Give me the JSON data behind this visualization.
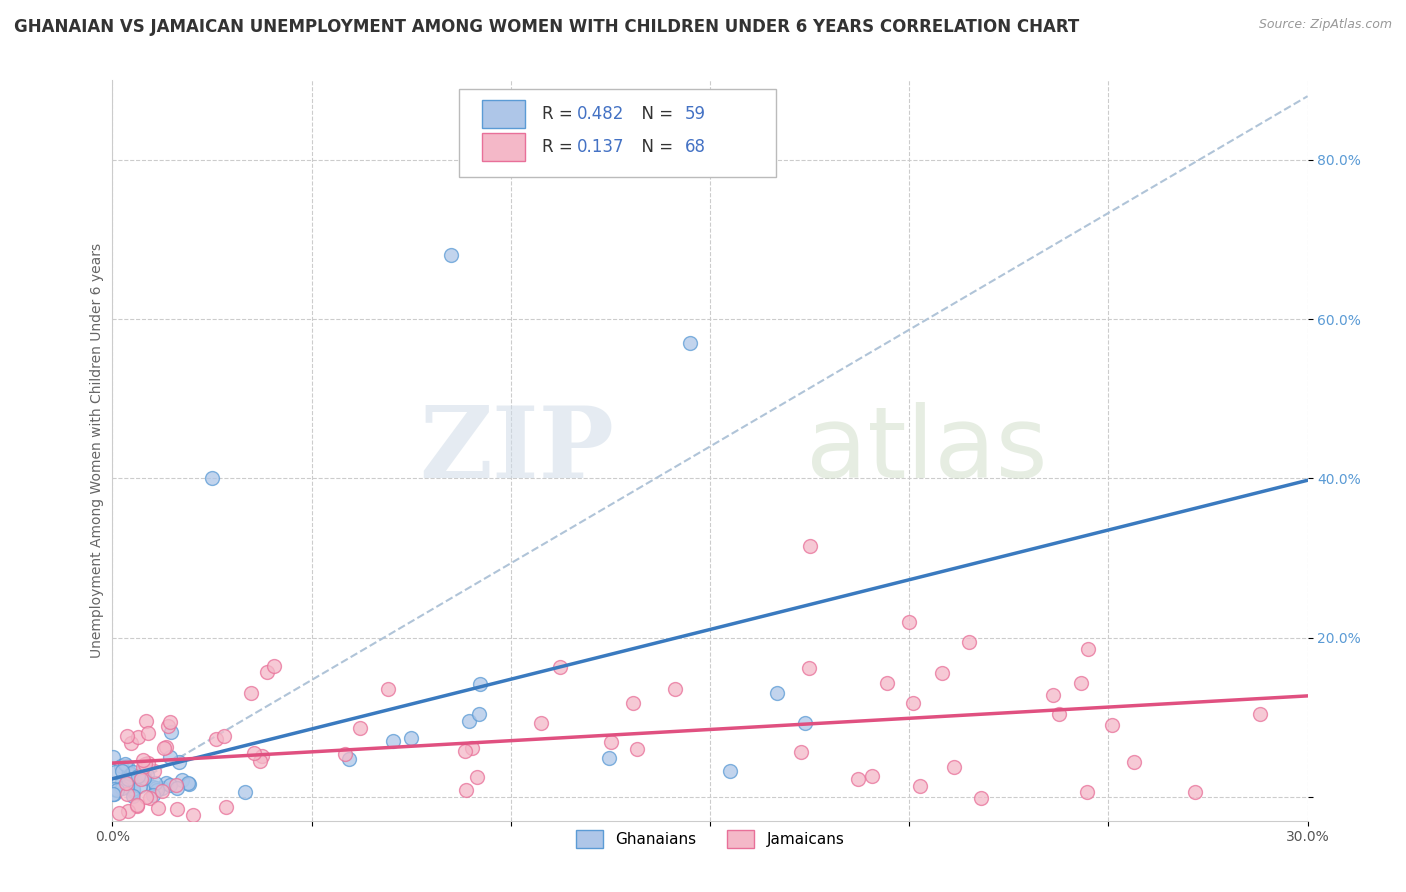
{
  "title": "GHANAIAN VS JAMAICAN UNEMPLOYMENT AMONG WOMEN WITH CHILDREN UNDER 6 YEARS CORRELATION CHART",
  "source": "Source: ZipAtlas.com",
  "ylabel": "Unemployment Among Women with Children Under 6 years",
  "watermark_zip": "ZIP",
  "watermark_atlas": "atlas",
  "xlim": [
    0.0,
    0.3
  ],
  "ylim": [
    -0.03,
    0.9
  ],
  "x_ticks": [
    0.0,
    0.05,
    0.1,
    0.15,
    0.2,
    0.25,
    0.3
  ],
  "x_tick_labels": [
    "0.0%",
    "",
    "",
    "",
    "",
    "",
    "30.0%"
  ],
  "y_ticks_right": [
    0.0,
    0.2,
    0.4,
    0.6,
    0.8
  ],
  "y_tick_labels_right": [
    "",
    "20.0%",
    "40.0%",
    "60.0%",
    "80.0%"
  ],
  "ghanaian_fill": "#aec6e8",
  "ghanaian_edge": "#5b9bd5",
  "jamaican_fill": "#f4b8c8",
  "jamaican_edge": "#e87099",
  "blue_line_color": "#3a7abf",
  "pink_line_color": "#e05080",
  "ref_line_color": "#b0c4d8",
  "legend_label1": "Ghanaians",
  "legend_label2": "Jamaicans",
  "R1": 0.482,
  "N1": 59,
  "R2": 0.137,
  "N2": 68,
  "title_fontsize": 12,
  "axis_label_fontsize": 10,
  "tick_fontsize": 10,
  "background_color": "#ffffff",
  "grid_color": "#cccccc",
  "blue_text_color": "#4472c4",
  "right_axis_color": "#5b9bd5"
}
